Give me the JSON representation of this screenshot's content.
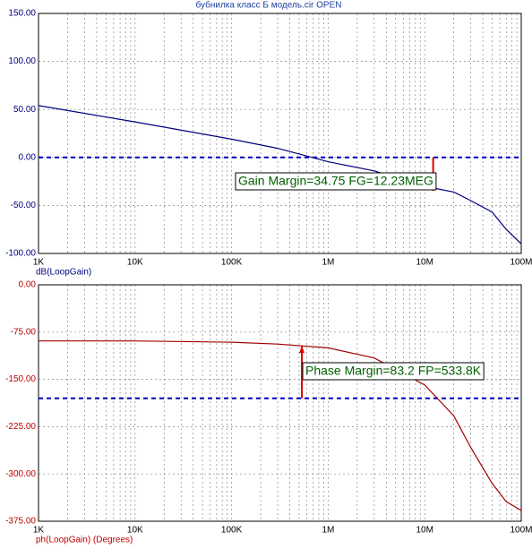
{
  "chart_data": [
    {
      "type": "line",
      "title": "бубнилка класс Б модель.cir OPEN",
      "x_label": "dB(LoopGain)",
      "log_x": true,
      "grid": true,
      "x": [
        1000,
        10000,
        100000,
        300000,
        1000000,
        3000000,
        10000000,
        20000000,
        30000000,
        50000000,
        70000000,
        100000000
      ],
      "series": [
        {
          "color": "#000080",
          "values": [
            54,
            37,
            19,
            9.5,
            -4.5,
            -14,
            -30,
            -36,
            -45,
            -57,
            -75,
            -90
          ]
        }
      ],
      "xlim": [
        1000,
        100000000
      ],
      "xticks": [
        {
          "value": 1000,
          "label": "1K"
        },
        {
          "value": 10000,
          "label": "10K"
        },
        {
          "value": 100000,
          "label": "100K"
        },
        {
          "value": 1000000,
          "label": "1M"
        },
        {
          "value": 10000000,
          "label": "10M"
        },
        {
          "value": 100000000,
          "label": "100M"
        }
      ],
      "ylim": [
        -100,
        150
      ],
      "yticks": [
        {
          "value": 150,
          "label": "150.00"
        },
        {
          "value": 100,
          "label": "100.00"
        },
        {
          "value": 50,
          "label": "50.00"
        },
        {
          "value": 0,
          "label": "0.00"
        },
        {
          "value": -50,
          "label": "-50.00"
        },
        {
          "value": -100,
          "label": "-100.00"
        }
      ],
      "ref_line": {
        "value": 0,
        "color": "#0000c0"
      },
      "annotations": [
        {
          "text": "Gain Margin=34.75 FG=12.23MEG",
          "x": 12230000,
          "margin": 34.75,
          "direction": "down",
          "color": "#e00000",
          "text_color": "#006000"
        }
      ]
    },
    {
      "type": "line",
      "x_label": "ph(LoopGain) (Degrees)",
      "log_x": true,
      "grid": true,
      "x": [
        1000,
        10000,
        100000,
        300000,
        1000000,
        3000000,
        10000000,
        20000000,
        30000000,
        50000000,
        70000000,
        100000000
      ],
      "series": [
        {
          "color": "#a00000",
          "values": [
            -89,
            -89,
            -91,
            -94,
            -100,
            -116,
            -159,
            -208,
            -258,
            -315,
            -344,
            -358
          ]
        }
      ],
      "xlim": [
        1000,
        100000000
      ],
      "xticks": [
        {
          "value": 1000,
          "label": "1K"
        },
        {
          "value": 10000,
          "label": "10K"
        },
        {
          "value": 100000,
          "label": "100K"
        },
        {
          "value": 1000000,
          "label": "1M"
        },
        {
          "value": 10000000,
          "label": "10M"
        },
        {
          "value": 100000000,
          "label": "100M"
        }
      ],
      "ylim": [
        -375,
        0
      ],
      "yticks": [
        {
          "value": 0,
          "label": "0.00"
        },
        {
          "value": -75,
          "label": "-75.00"
        },
        {
          "value": -150,
          "label": "-150.00"
        },
        {
          "value": -225,
          "label": "-225.00"
        },
        {
          "value": -300,
          "label": "-300.00"
        },
        {
          "value": -375,
          "label": "-375.00"
        }
      ],
      "ref_line": {
        "value": -180,
        "color": "#0000c0"
      },
      "annotations": [
        {
          "text": "Phase Margin=83.2 FP=533.8K",
          "x": 533800,
          "margin": 83.2,
          "direction": "up",
          "color": "#e00000",
          "text_color": "#006000"
        }
      ]
    }
  ]
}
